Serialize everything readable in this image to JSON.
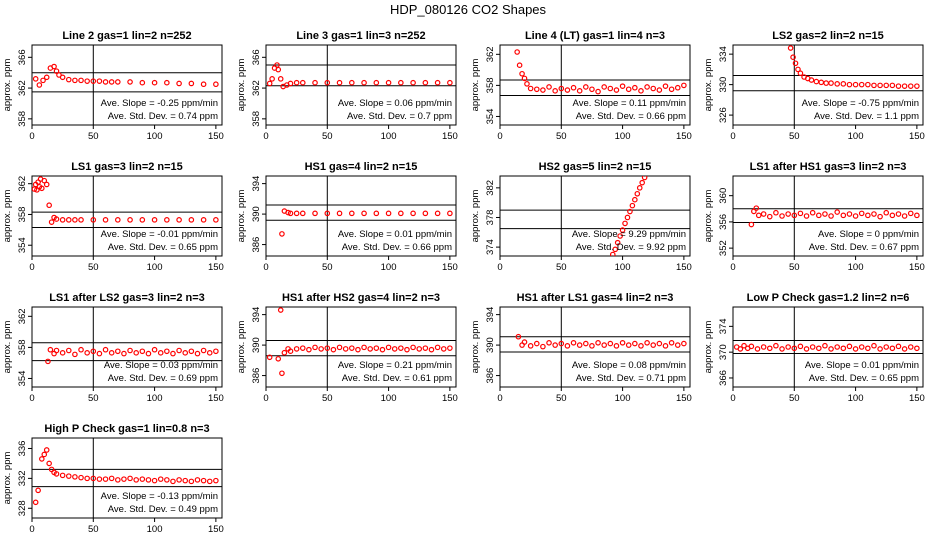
{
  "title": "HDP_080126  CO2 Shapes",
  "chart_data": [
    {
      "type": "scatter",
      "title": "Line 2 gas=1 lin=2 n=252",
      "ylabel": "approx. ppm",
      "xlim": [
        0,
        155
      ],
      "ylim": [
        357.2,
        367.6
      ],
      "xticks": [
        0,
        50,
        100,
        150
      ],
      "yticks": [
        358,
        362,
        366
      ],
      "ref_x": 50,
      "ref_y": [
        361.5,
        364.0
      ],
      "slope": "Ave. Slope = -0.25 ppm/min",
      "sd": "Ave. Std. Dev. = 0.74 ppm",
      "x": [
        3,
        6,
        9,
        12,
        15,
        18,
        20,
        22,
        25,
        30,
        35,
        40,
        45,
        50,
        55,
        60,
        65,
        70,
        80,
        90,
        100,
        110,
        120,
        130,
        140,
        150
      ],
      "y": [
        363.2,
        362.4,
        363.0,
        363.4,
        364.6,
        364.8,
        364.2,
        363.7,
        363.4,
        363.1,
        363.0,
        363.0,
        362.9,
        362.9,
        362.9,
        362.8,
        362.8,
        362.8,
        362.8,
        362.7,
        362.7,
        362.7,
        362.6,
        362.6,
        362.5,
        362.5
      ]
    },
    {
      "type": "scatter",
      "title": "Line 3 gas=1 lin=3 n=252",
      "ylabel": "approx. ppm",
      "xlim": [
        0,
        155
      ],
      "ylim": [
        357.2,
        367.6
      ],
      "xticks": [
        0,
        50,
        100,
        150
      ],
      "yticks": [
        358,
        362,
        366
      ],
      "ref_x": 50,
      "ref_y": [
        362.3,
        365.0
      ],
      "slope": "Ave. Slope = 0.06 ppm/min",
      "sd": "Ave. Std. Dev. = 0.7 ppm",
      "x": [
        3,
        5,
        7,
        9,
        10,
        12,
        14,
        17,
        20,
        25,
        30,
        40,
        50,
        60,
        70,
        80,
        90,
        100,
        110,
        120,
        130,
        140,
        150
      ],
      "y": [
        362.6,
        363.2,
        364.6,
        365.0,
        364.4,
        363.2,
        362.2,
        362.4,
        362.6,
        362.7,
        362.7,
        362.7,
        362.7,
        362.7,
        362.7,
        362.7,
        362.7,
        362.7,
        362.7,
        362.7,
        362.7,
        362.7,
        362.7
      ]
    },
    {
      "type": "scatter",
      "title": "Line 4 (LT) gas=1 lin=4 n=3",
      "ylabel": "approx. ppm",
      "xlim": [
        0,
        155
      ],
      "ylim": [
        352.9,
        363.2
      ],
      "xticks": [
        0,
        50,
        100,
        150
      ],
      "yticks": [
        354,
        358,
        362
      ],
      "ref_x": 50,
      "ref_y": [
        356.7,
        358.7
      ],
      "slope": "Ave. Slope = 0.11 ppm/min",
      "sd": "Ave. Std. Dev. = 0.66 ppm",
      "x": [
        14,
        16,
        18,
        20,
        22,
        25,
        30,
        35,
        40,
        45,
        50,
        55,
        60,
        65,
        70,
        75,
        80,
        85,
        90,
        95,
        100,
        105,
        110,
        115,
        120,
        125,
        130,
        135,
        140,
        145,
        150
      ],
      "y": [
        362.3,
        360.6,
        359.5,
        358.9,
        358.2,
        357.6,
        357.5,
        357.4,
        357.8,
        357.3,
        357.6,
        357.4,
        357.7,
        357.3,
        357.8,
        357.5,
        357.2,
        357.8,
        357.6,
        357.4,
        357.9,
        357.5,
        357.7,
        357.3,
        357.8,
        357.6,
        357.4,
        357.9,
        357.5,
        357.7,
        358.0
      ]
    },
    {
      "type": "scatter",
      "title": "LS2 gas=2 lin=2 n=15",
      "ylabel": "approx. ppm",
      "xlim": [
        0,
        155
      ],
      "ylim": [
        324.7,
        335.2
      ],
      "xticks": [
        0,
        50,
        100,
        150
      ],
      "yticks": [
        326,
        330,
        334
      ],
      "ref_x": 50,
      "ref_y": [
        329.2,
        331.2
      ],
      "slope": "Ave. Slope = -0.75 ppm/min",
      "sd": "Ave. Std. Dev. = 1.1 ppm",
      "x": [
        47,
        49,
        51,
        53,
        55,
        58,
        61,
        64,
        68,
        72,
        76,
        80,
        85,
        90,
        95,
        100,
        105,
        110,
        115,
        120,
        125,
        130,
        135,
        140,
        145,
        150
      ],
      "y": [
        334.8,
        333.6,
        332.8,
        332.0,
        331.5,
        331.0,
        330.8,
        330.6,
        330.4,
        330.3,
        330.2,
        330.2,
        330.1,
        330.1,
        330.0,
        330.0,
        330.0,
        330.0,
        329.9,
        329.9,
        329.9,
        329.9,
        329.8,
        329.8,
        329.8,
        329.8
      ]
    },
    {
      "type": "scatter",
      "title": "LS1 gas=3 lin=2 n=15",
      "ylabel": "approx. ppm",
      "xlim": [
        0,
        155
      ],
      "ylim": [
        352.6,
        363.0
      ],
      "xticks": [
        0,
        50,
        100,
        150
      ],
      "yticks": [
        354,
        358,
        362
      ],
      "ref_x": 50,
      "ref_y": [
        356.3,
        358.3
      ],
      "slope": "Ave. Slope = -0.01 ppm/min",
      "sd": "Ave. Std. Dev. = 0.65 ppm",
      "x": [
        2,
        3,
        4,
        5,
        6,
        7,
        8,
        10,
        12,
        14,
        16,
        18,
        20,
        25,
        30,
        35,
        40,
        50,
        60,
        70,
        80,
        90,
        100,
        110,
        120,
        130,
        140,
        150
      ],
      "y": [
        361.3,
        361.9,
        361.2,
        362.2,
        361.6,
        362.6,
        361.4,
        362.4,
        361.9,
        359.2,
        357.0,
        357.6,
        357.4,
        357.3,
        357.3,
        357.3,
        357.3,
        357.3,
        357.3,
        357.3,
        357.3,
        357.3,
        357.3,
        357.3,
        357.3,
        357.3,
        357.3,
        357.3
      ]
    },
    {
      "type": "scatter",
      "title": "HS1 gas=4 lin=2 n=15",
      "ylabel": "approx. ppm",
      "xlim": [
        0,
        155
      ],
      "ylim": [
        384.5,
        395.0
      ],
      "xticks": [
        0,
        50,
        100,
        150
      ],
      "yticks": [
        386,
        390,
        394
      ],
      "ref_x": 50,
      "ref_y": [
        389.2,
        391.2
      ],
      "slope": "Ave. Slope = 0.01 ppm/min",
      "sd": "Ave. Std. Dev. = 0.66 ppm",
      "x": [
        13,
        15,
        18,
        20,
        25,
        30,
        40,
        50,
        60,
        70,
        80,
        90,
        100,
        110,
        120,
        130,
        140,
        150
      ],
      "y": [
        387.4,
        390.4,
        390.2,
        390.1,
        390.1,
        390.1,
        390.1,
        390.1,
        390.1,
        390.1,
        390.1,
        390.1,
        390.1,
        390.1,
        390.1,
        390.1,
        390.1,
        390.1
      ]
    },
    {
      "type": "scatter",
      "title": "HS2 gas=5 lin=2 n=15",
      "ylabel": "approx. ppm",
      "xlim": [
        0,
        155
      ],
      "ylim": [
        372.8,
        383.6
      ],
      "xticks": [
        0,
        50,
        100,
        150
      ],
      "yticks": [
        374,
        378,
        382
      ],
      "ref_x": 50,
      "ref_y": [
        376.5,
        379.0
      ],
      "slope": "Ave. Slope = 9.29 ppm/min",
      "sd": "Ave. Std. Dev. = 9.92 ppm",
      "x": [
        92,
        94,
        96,
        98,
        100,
        102,
        104,
        106,
        108,
        110,
        112,
        114,
        116,
        118
      ],
      "y": [
        373.0,
        373.7,
        374.6,
        375.5,
        376.3,
        377.2,
        378.0,
        378.8,
        379.6,
        380.4,
        381.2,
        382.0,
        382.7,
        383.4
      ]
    },
    {
      "type": "scatter",
      "title": "LS1 after HS1 gas=3 lin=2 n=3",
      "ylabel": "approx. ppm",
      "xlim": [
        0,
        155
      ],
      "ylim": [
        350.8,
        363.0
      ],
      "xticks": [
        0,
        50,
        100,
        150
      ],
      "yticks": [
        352,
        356,
        360
      ],
      "ref_x": 50,
      "ref_y": [
        355.9,
        358.0
      ],
      "slope": "Ave. Slope = 0 ppm/min",
      "sd": "Ave. Std. Dev. = 0.67 ppm",
      "x": [
        15,
        17,
        19,
        21,
        25,
        30,
        35,
        40,
        45,
        50,
        55,
        60,
        65,
        70,
        75,
        80,
        85,
        90,
        95,
        100,
        105,
        110,
        115,
        120,
        125,
        130,
        135,
        140,
        145,
        150
      ],
      "y": [
        355.6,
        357.6,
        358.1,
        357.0,
        357.2,
        356.8,
        357.4,
        356.9,
        357.2,
        357.0,
        357.3,
        356.9,
        357.4,
        357.0,
        357.2,
        356.9,
        357.5,
        357.0,
        357.2,
        356.9,
        357.3,
        357.0,
        357.2,
        356.8,
        357.4,
        357.0,
        357.2,
        356.9,
        357.3,
        357.0
      ]
    },
    {
      "type": "scatter",
      "title": "LS1 after LS2 gas=3 lin=2 n=3",
      "ylabel": "approx. ppm",
      "xlim": [
        0,
        155
      ],
      "ylim": [
        352.9,
        363.2
      ],
      "xticks": [
        0,
        50,
        100,
        150
      ],
      "yticks": [
        354,
        358,
        362
      ],
      "ref_x": 50,
      "ref_y": [
        356.3,
        358.6
      ],
      "slope": "Ave. Slope = 0.03 ppm/min",
      "sd": "Ave. Std. Dev. = 0.69 ppm",
      "x": [
        13,
        15,
        18,
        20,
        25,
        30,
        35,
        40,
        45,
        50,
        55,
        60,
        65,
        70,
        75,
        80,
        85,
        90,
        95,
        100,
        105,
        110,
        115,
        120,
        125,
        130,
        135,
        140,
        145,
        150
      ],
      "y": [
        356.2,
        357.7,
        357.2,
        357.6,
        357.3,
        357.6,
        357.1,
        357.7,
        357.3,
        357.5,
        357.2,
        357.7,
        357.3,
        357.5,
        357.2,
        357.6,
        357.3,
        357.5,
        357.2,
        357.7,
        357.3,
        357.5,
        357.2,
        357.6,
        357.3,
        357.5,
        357.2,
        357.6,
        357.3,
        357.5
      ]
    },
    {
      "type": "scatter",
      "title": "HS1 after HS2 gas=4 lin=2 n=3",
      "ylabel": "approx. ppm",
      "xlim": [
        0,
        155
      ],
      "ylim": [
        384.5,
        395.0
      ],
      "xticks": [
        0,
        50,
        100,
        150
      ],
      "yticks": [
        386,
        390,
        394
      ],
      "ref_x": 50,
      "ref_y": [
        388.6,
        390.6
      ],
      "slope": "Ave. Slope = 0.21 ppm/min",
      "sd": "Ave. Std. Dev. = 0.61 ppm",
      "x": [
        3,
        10,
        12,
        13,
        15,
        18,
        20,
        25,
        30,
        35,
        40,
        45,
        50,
        55,
        60,
        65,
        70,
        75,
        80,
        85,
        90,
        95,
        100,
        105,
        110,
        115,
        120,
        125,
        130,
        135,
        140,
        145,
        150
      ],
      "y": [
        388.4,
        388.2,
        394.6,
        386.3,
        389.0,
        389.5,
        389.2,
        389.5,
        389.6,
        389.4,
        389.7,
        389.5,
        389.6,
        389.4,
        389.7,
        389.5,
        389.6,
        389.4,
        389.7,
        389.5,
        389.6,
        389.4,
        389.7,
        389.5,
        389.6,
        389.4,
        389.7,
        389.5,
        389.6,
        389.4,
        389.7,
        389.5,
        389.6
      ]
    },
    {
      "type": "scatter",
      "title": "HS1 after LS1 gas=4 lin=2 n=3",
      "ylabel": "approx. ppm",
      "xlim": [
        0,
        155
      ],
      "ylim": [
        384.5,
        395.0
      ],
      "xticks": [
        0,
        50,
        100,
        150
      ],
      "yticks": [
        386,
        390,
        394
      ],
      "ref_x": 50,
      "ref_y": [
        389.1,
        391.1
      ],
      "slope": "Ave. Slope = 0.08 ppm/min",
      "sd": "Ave. Std. Dev. = 0.71 ppm",
      "x": [
        15,
        18,
        20,
        25,
        30,
        35,
        40,
        45,
        50,
        55,
        60,
        65,
        70,
        75,
        80,
        85,
        90,
        95,
        100,
        105,
        110,
        115,
        120,
        125,
        130,
        135,
        140,
        145,
        150
      ],
      "y": [
        391.1,
        390.0,
        390.4,
        389.9,
        390.2,
        389.8,
        390.3,
        390.0,
        390.2,
        389.9,
        390.3,
        390.0,
        390.2,
        389.9,
        390.3,
        390.0,
        390.2,
        389.9,
        390.3,
        390.0,
        390.2,
        389.9,
        390.3,
        390.0,
        390.2,
        389.9,
        390.3,
        390.0,
        390.2
      ]
    },
    {
      "type": "scatter",
      "title": "Low P Check gas=1.2 lin=2 n=6",
      "ylabel": "approx. ppm",
      "xlim": [
        0,
        155
      ],
      "ylim": [
        364.6,
        377.0
      ],
      "xticks": [
        0,
        50,
        100,
        150
      ],
      "yticks": [
        366,
        370,
        374
      ],
      "ref_x": 50,
      "ref_y": [
        369.8,
        371.8
      ],
      "slope": "Ave. Slope = 0.01 ppm/min",
      "sd": "Ave. Std. Dev. = 0.65 ppm",
      "x": [
        3,
        6,
        9,
        12,
        15,
        20,
        25,
        30,
        35,
        40,
        45,
        50,
        55,
        60,
        65,
        70,
        75,
        80,
        85,
        90,
        95,
        100,
        105,
        110,
        115,
        120,
        125,
        130,
        135,
        140,
        145,
        150
      ],
      "y": [
        370.8,
        370.5,
        371.0,
        370.6,
        370.9,
        370.5,
        370.8,
        370.6,
        371.0,
        370.5,
        370.8,
        370.6,
        370.9,
        370.5,
        370.8,
        370.6,
        371.0,
        370.5,
        370.8,
        370.6,
        370.9,
        370.5,
        370.8,
        370.6,
        371.0,
        370.5,
        370.8,
        370.6,
        370.9,
        370.5,
        370.8,
        370.6
      ]
    },
    {
      "type": "scatter",
      "title": "High P Check gas=1 lin=0.8 n=3",
      "ylabel": "approx. ppm",
      "xlim": [
        0,
        155
      ],
      "ylim": [
        326.7,
        337.4
      ],
      "xticks": [
        0,
        50,
        100,
        150
      ],
      "yticks": [
        328,
        332,
        336
      ],
      "ref_x": 50,
      "ref_y": [
        330.9,
        333.2
      ],
      "slope": "Ave. Slope = -0.13 ppm/min",
      "sd": "Ave. Std. Dev. = 0.49 ppm",
      "x": [
        3,
        5,
        8,
        10,
        12,
        14,
        16,
        18,
        20,
        25,
        30,
        35,
        40,
        45,
        50,
        55,
        60,
        65,
        70,
        75,
        80,
        85,
        90,
        95,
        100,
        105,
        110,
        115,
        120,
        125,
        130,
        135,
        140,
        145,
        150
      ],
      "y": [
        328.8,
        330.4,
        334.6,
        335.2,
        335.8,
        334.0,
        333.2,
        332.8,
        332.6,
        332.4,
        332.3,
        332.2,
        332.1,
        332.0,
        332.0,
        331.9,
        331.9,
        332.0,
        331.8,
        331.9,
        332.0,
        331.8,
        331.9,
        331.8,
        331.7,
        331.9,
        331.8,
        331.6,
        331.8,
        331.7,
        331.6,
        331.8,
        331.7,
        331.6,
        331.7
      ]
    }
  ]
}
